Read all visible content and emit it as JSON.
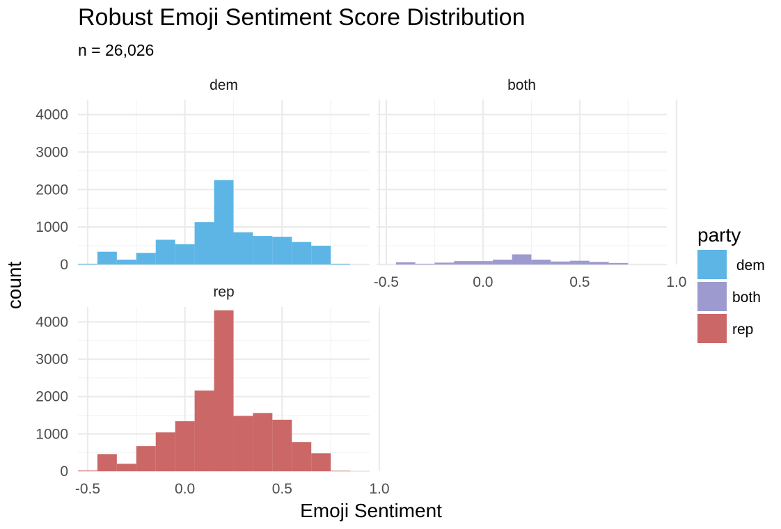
{
  "chart_data": {
    "type": "bar",
    "title": "Robust Emoji Sentiment Score Distribution",
    "subtitle": "n = 26,026",
    "xlabel": "Emoji Sentiment",
    "ylabel": "count",
    "xlim": [
      -0.55,
      0.95
    ],
    "ylim": [
      0,
      4400
    ],
    "x_ticks": [
      "-0.5",
      "0.0",
      "0.5",
      "1.0"
    ],
    "x_tick_values": [
      -0.5,
      0.0,
      0.5,
      1.0
    ],
    "y_ticks": [
      "0",
      "1000",
      "2000",
      "3000",
      "4000"
    ],
    "y_tick_values": [
      0,
      1000,
      2000,
      3000,
      4000
    ],
    "bin_width": 0.1,
    "bin_centers": [
      -0.5,
      -0.4,
      -0.3,
      -0.2,
      -0.1,
      0.0,
      0.1,
      0.2,
      0.3,
      0.4,
      0.5,
      0.6,
      0.7,
      0.8
    ],
    "grid": true,
    "legend_title": "party",
    "legend_position": "right",
    "series": [
      {
        "name": "dem",
        "color": "#5DB5E5",
        "values": [
          20,
          340,
          130,
          310,
          660,
          540,
          1130,
          2250,
          860,
          760,
          740,
          600,
          500,
          20
        ]
      },
      {
        "name": "both",
        "color": "#9D9ACF",
        "values": [
          0,
          60,
          20,
          50,
          90,
          90,
          130,
          270,
          130,
          80,
          100,
          70,
          40,
          0
        ]
      },
      {
        "name": "rep",
        "color": "#CB6767",
        "values": [
          20,
          460,
          200,
          670,
          1040,
          1340,
          2160,
          4310,
          1480,
          1560,
          1380,
          780,
          480,
          10
        ]
      }
    ],
    "legend_labels": [
      " dem",
      "both",
      "rep"
    ]
  }
}
